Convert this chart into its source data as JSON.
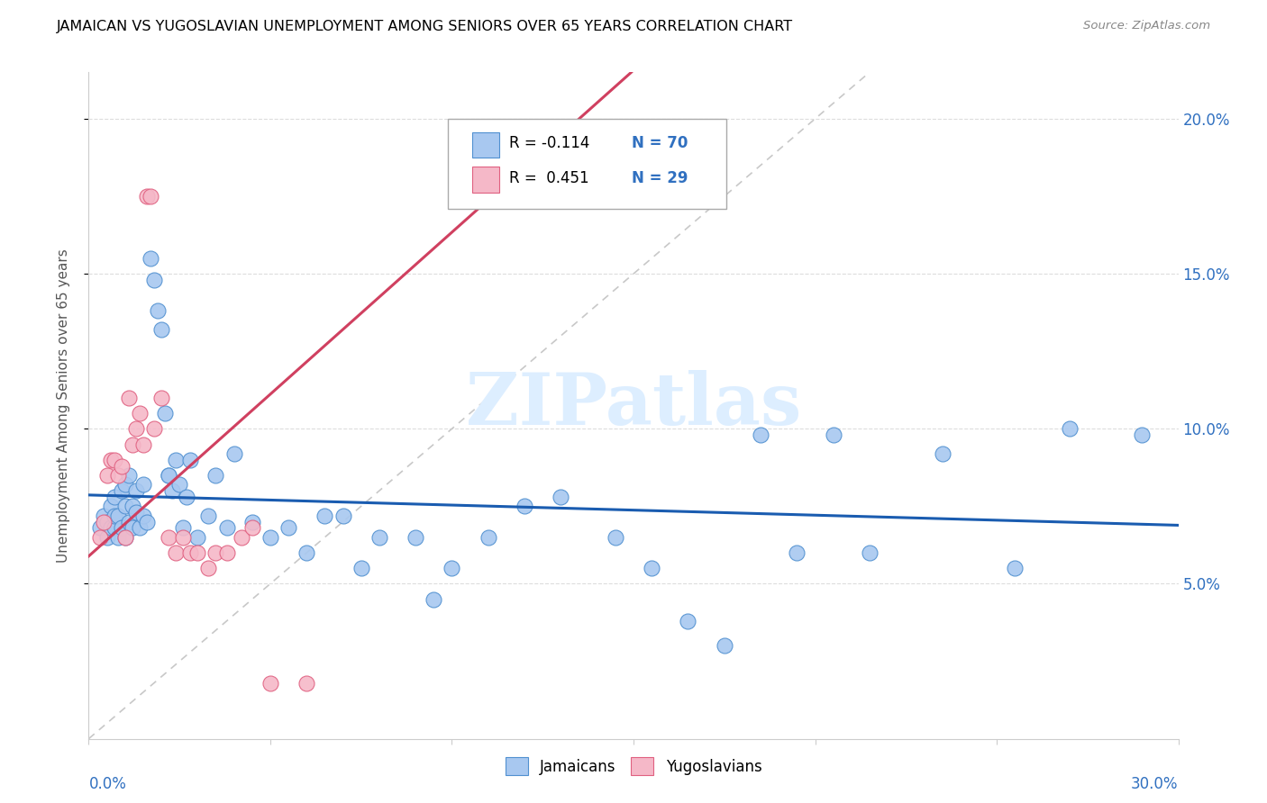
{
  "title": "JAMAICAN VS YUGOSLAVIAN UNEMPLOYMENT AMONG SENIORS OVER 65 YEARS CORRELATION CHART",
  "source": "Source: ZipAtlas.com",
  "ylabel": "Unemployment Among Seniors over 65 years",
  "xlim": [
    0.0,
    0.3
  ],
  "ylim": [
    0.0,
    0.215
  ],
  "ytick_vals": [
    0.05,
    0.1,
    0.15,
    0.2
  ],
  "ytick_labels": [
    "5.0%",
    "10.0%",
    "15.0%",
    "20.0%"
  ],
  "xtick_vals": [
    0.0,
    0.05,
    0.1,
    0.15,
    0.2,
    0.25,
    0.3
  ],
  "color_jamaican_fill": "#a8c8f0",
  "color_jamaican_edge": "#5090d0",
  "color_yugoslavian_fill": "#f5b8c8",
  "color_yugoslavian_edge": "#e06080",
  "color_line_jamaican": "#1a5cb0",
  "color_line_yugoslavian": "#d04060",
  "color_diagonal": "#c8c8c8",
  "color_ytick": "#3070c0",
  "watermark_color": "#ddeeff",
  "jamaican_x": [
    0.003,
    0.004,
    0.005,
    0.005,
    0.006,
    0.006,
    0.007,
    0.007,
    0.007,
    0.008,
    0.008,
    0.009,
    0.009,
    0.01,
    0.01,
    0.01,
    0.011,
    0.011,
    0.012,
    0.012,
    0.013,
    0.013,
    0.014,
    0.015,
    0.015,
    0.016,
    0.017,
    0.018,
    0.019,
    0.02,
    0.021,
    0.022,
    0.022,
    0.023,
    0.024,
    0.025,
    0.026,
    0.027,
    0.028,
    0.03,
    0.033,
    0.035,
    0.038,
    0.04,
    0.045,
    0.05,
    0.055,
    0.06,
    0.065,
    0.07,
    0.075,
    0.08,
    0.09,
    0.095,
    0.1,
    0.11,
    0.12,
    0.13,
    0.145,
    0.155,
    0.165,
    0.175,
    0.185,
    0.195,
    0.205,
    0.215,
    0.235,
    0.255,
    0.27,
    0.29
  ],
  "jamaican_y": [
    0.068,
    0.072,
    0.07,
    0.065,
    0.068,
    0.075,
    0.068,
    0.072,
    0.078,
    0.065,
    0.072,
    0.068,
    0.08,
    0.065,
    0.075,
    0.082,
    0.07,
    0.085,
    0.068,
    0.075,
    0.08,
    0.073,
    0.068,
    0.072,
    0.082,
    0.07,
    0.155,
    0.148,
    0.138,
    0.132,
    0.105,
    0.085,
    0.085,
    0.08,
    0.09,
    0.082,
    0.068,
    0.078,
    0.09,
    0.065,
    0.072,
    0.085,
    0.068,
    0.092,
    0.07,
    0.065,
    0.068,
    0.06,
    0.072,
    0.072,
    0.055,
    0.065,
    0.065,
    0.045,
    0.055,
    0.065,
    0.075,
    0.078,
    0.065,
    0.055,
    0.038,
    0.03,
    0.098,
    0.06,
    0.098,
    0.06,
    0.092,
    0.055,
    0.1,
    0.098
  ],
  "yugoslavian_x": [
    0.003,
    0.004,
    0.005,
    0.006,
    0.007,
    0.008,
    0.009,
    0.01,
    0.011,
    0.012,
    0.013,
    0.014,
    0.015,
    0.016,
    0.017,
    0.018,
    0.02,
    0.022,
    0.024,
    0.026,
    0.028,
    0.03,
    0.033,
    0.035,
    0.038,
    0.042,
    0.045,
    0.05,
    0.06
  ],
  "yugoslavian_y": [
    0.065,
    0.07,
    0.085,
    0.09,
    0.09,
    0.085,
    0.088,
    0.065,
    0.11,
    0.095,
    0.1,
    0.105,
    0.095,
    0.175,
    0.175,
    0.1,
    0.11,
    0.065,
    0.06,
    0.065,
    0.06,
    0.06,
    0.055,
    0.06,
    0.06,
    0.065,
    0.068,
    0.018,
    0.018
  ],
  "r_jamaican": -0.114,
  "n_jamaican": 70,
  "r_yugoslavian": 0.451,
  "n_yugoslavian": 29
}
